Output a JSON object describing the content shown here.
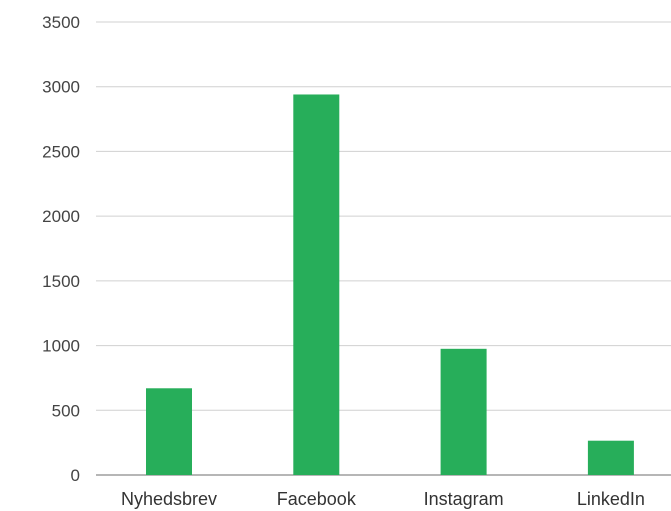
{
  "chart_data": {
    "type": "bar",
    "title": "",
    "xlabel": "",
    "ylabel": "",
    "categories": [
      "Nyhedsbrev",
      "Facebook",
      "Instagram",
      "LinkedIn"
    ],
    "values": [
      670,
      2940,
      975,
      265
    ],
    "ylim": [
      0,
      3500
    ],
    "yticks": [
      0,
      500,
      1000,
      1500,
      2000,
      2500,
      3000,
      3500
    ],
    "grid": true,
    "legend": "none",
    "bar_color": "#27ae5a"
  }
}
